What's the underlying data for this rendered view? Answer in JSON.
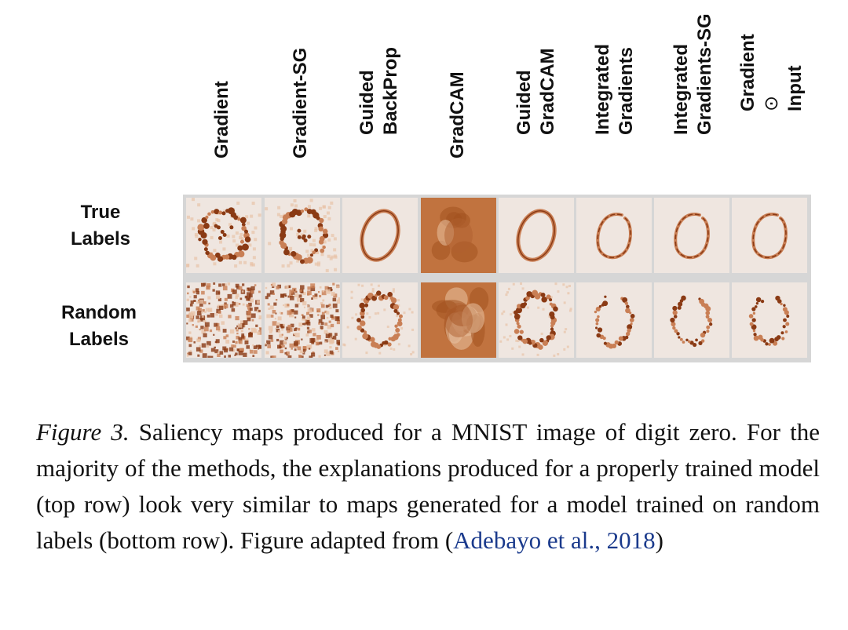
{
  "columns": [
    {
      "lines": [
        "Gradient"
      ]
    },
    {
      "lines": [
        "Gradient-SG"
      ]
    },
    {
      "lines": [
        "Guided",
        "BackProp"
      ]
    },
    {
      "lines": [
        "GradCAM"
      ]
    },
    {
      "lines": [
        "Guided",
        "GradCAM"
      ]
    },
    {
      "lines": [
        "Integrated",
        "Gradients"
      ]
    },
    {
      "lines": [
        "Integrated",
        "Gradients-SG"
      ]
    },
    {
      "lines": [
        "Gradient",
        "⊙",
        "Input"
      ]
    }
  ],
  "rows": [
    {
      "lines": [
        "True",
        "Labels"
      ]
    },
    {
      "lines": [
        "Random",
        "Labels"
      ]
    }
  ],
  "caption": {
    "figure_label": "Figure 3.",
    "text_before_cite": " Saliency maps produced for a MNIST image of digit zero. For the majority of the methods, the explanations produced for a properly trained model (top row) look very similar to maps generated for a model trained on random labels (bottom row). Figure adapted from (",
    "cite": "Adebayo et al., 2018",
    "text_after_cite": ")"
  },
  "colors": {
    "tile_background": "#efe6e0",
    "saliency_dark": "#8a3a14",
    "saliency_mid": "#c97f55",
    "saliency_light": "#e8c3a8",
    "gradcam_base": "#c1733f",
    "grid_border": "#d6d6d6",
    "cite_link": "#1a3a8c"
  }
}
